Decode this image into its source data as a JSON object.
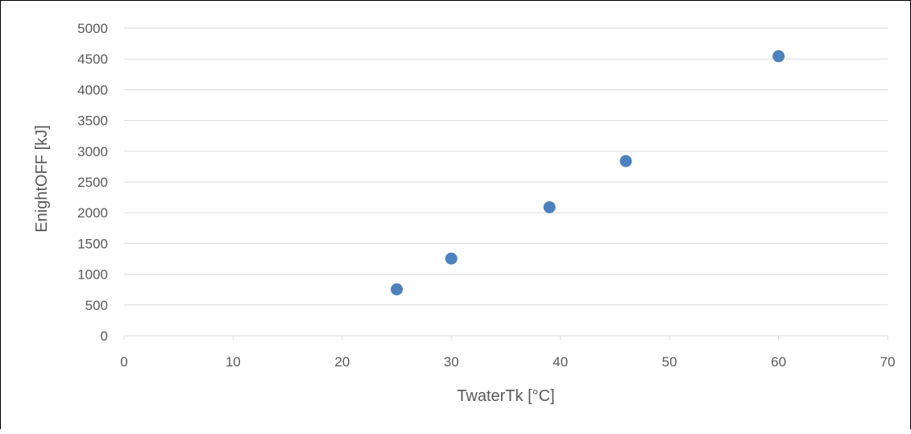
{
  "chart_data": {
    "type": "scatter",
    "title": "",
    "xlabel": "TwaterTk [°C]",
    "ylabel": "EnightOFF [kJ]",
    "xlim": [
      0,
      70
    ],
    "ylim": [
      0,
      5000
    ],
    "xticks": [
      0,
      10,
      20,
      30,
      40,
      50,
      60,
      70
    ],
    "yticks": [
      0,
      500,
      1000,
      1500,
      2000,
      2500,
      3000,
      3500,
      4000,
      4500,
      5000
    ],
    "grid": "horizontal",
    "legend": "none",
    "series": [
      {
        "color": "#4f81bd",
        "points": [
          {
            "x": 25,
            "y": 755
          },
          {
            "x": 30,
            "y": 1255
          },
          {
            "x": 39,
            "y": 2090
          },
          {
            "x": 46,
            "y": 2840
          },
          {
            "x": 60,
            "y": 4545
          }
        ]
      }
    ]
  },
  "colors": {
    "gridline": "#d9d9d9",
    "text": "#595959",
    "marker": "#4f81bd"
  }
}
